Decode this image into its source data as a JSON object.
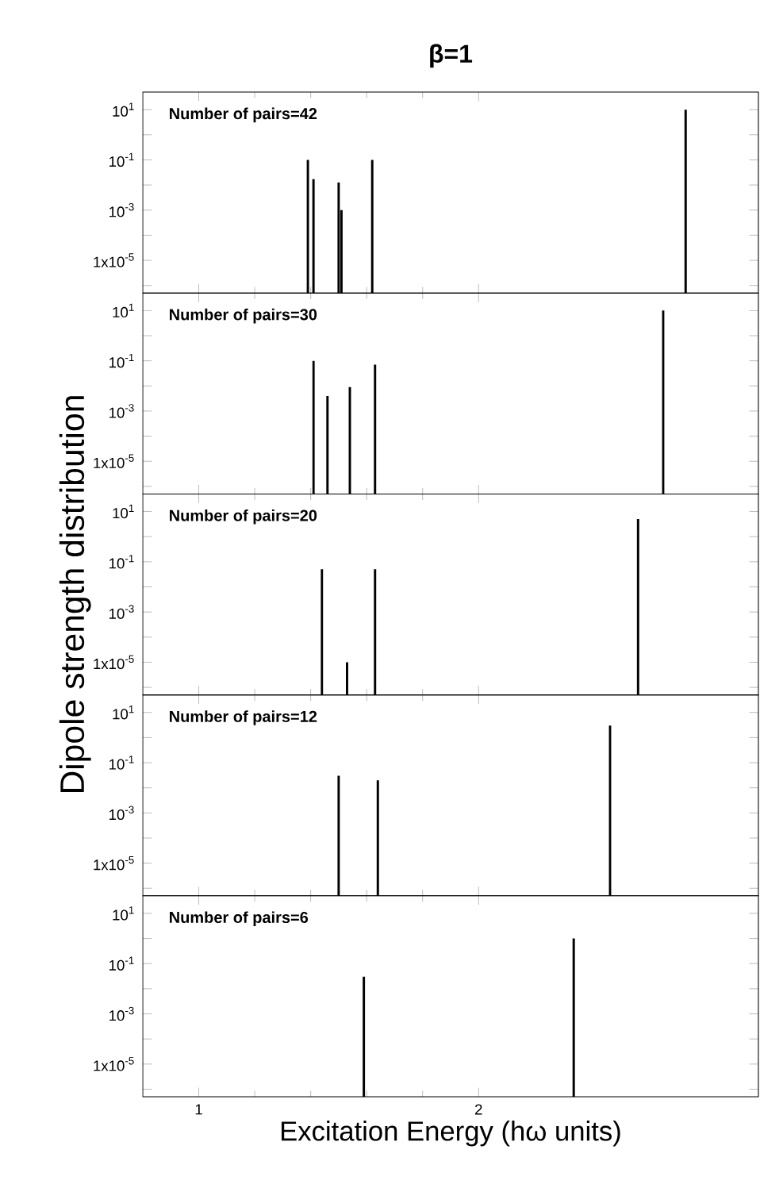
{
  "chart_data": [
    {
      "type": "bar",
      "title": "β=1",
      "annotations": [
        "Number of pairs=42"
      ],
      "log": "y",
      "xlim": [
        0.8,
        3.0
      ],
      "xticks": [
        1,
        2
      ],
      "ylim": [
        5e-07,
        50
      ],
      "tick_labels": "y",
      "yticks": [
        {
          "value": 10,
          "label": "10$^{1}$"
        },
        {
          "value": 1,
          "label": null
        },
        {
          "value": 0.1,
          "label": "10$^{-1}$"
        },
        {
          "value": 0.01,
          "label": null
        },
        {
          "value": 0.001,
          "label": "10$^{-3}$"
        },
        {
          "value": 0.0001,
          "label": null
        },
        {
          "value": 1e-05,
          "label": "1x10$^{-5}$"
        },
        {
          "value": 1e-06,
          "label": null
        }
      ],
      "series": [
        {
          "color": "#000000",
          "x": [
            1.39,
            1.41,
            1.5,
            1.51,
            1.62,
            2.74
          ],
          "values": [
            0.1,
            0.017,
            0.0125,
            0.001,
            0.1,
            10
          ]
        }
      ]
    },
    {
      "type": "bar",
      "annotations": [
        "Number of pairs=30"
      ],
      "log": "y",
      "xlim": [
        0.8,
        3.0
      ],
      "xticks": [
        1,
        2
      ],
      "ylim": [
        5e-07,
        50
      ],
      "tick_labels": "y",
      "yticks": [
        {
          "value": 10,
          "label": "10$^{1}$"
        },
        {
          "value": 1,
          "label": null
        },
        {
          "value": 0.1,
          "label": "10$^{-1}$"
        },
        {
          "value": 0.01,
          "label": null
        },
        {
          "value": 0.001,
          "label": "10$^{-3}$"
        },
        {
          "value": 0.0001,
          "label": null
        },
        {
          "value": 1e-05,
          "label": "1x10$^{-5}$"
        },
        {
          "value": 1e-06,
          "label": null
        }
      ],
      "series": [
        {
          "color": "#000000",
          "x": [
            1.41,
            1.46,
            1.54,
            1.63,
            2.66
          ],
          "values": [
            0.1,
            0.004,
            0.009,
            0.07,
            10
          ]
        }
      ]
    },
    {
      "type": "bar",
      "annotations": [
        "Number of pairs=20"
      ],
      "ylabel": "Dipole strength distribution",
      "log": "y",
      "xlim": [
        0.8,
        3.0
      ],
      "xticks": [
        1,
        2
      ],
      "ylim": [
        5e-07,
        50
      ],
      "tick_labels": "y",
      "yticks": [
        {
          "value": 10,
          "label": "10$^{1}$"
        },
        {
          "value": 1,
          "label": null
        },
        {
          "value": 0.1,
          "label": "10$^{-1}$"
        },
        {
          "value": 0.01,
          "label": null
        },
        {
          "value": 0.001,
          "label": "10$^{-3}$"
        },
        {
          "value": 0.0001,
          "label": null
        },
        {
          "value": 1e-05,
          "label": "1x10$^{-5}$"
        },
        {
          "value": 1e-06,
          "label": null
        }
      ],
      "series": [
        {
          "color": "#000000",
          "x": [
            1.44,
            1.53,
            1.63,
            2.57
          ],
          "values": [
            0.05,
            1e-05,
            0.05,
            5
          ]
        }
      ]
    },
    {
      "type": "bar",
      "annotations": [
        "Number of pairs=12"
      ],
      "log": "y",
      "xlim": [
        0.8,
        3.0
      ],
      "xticks": [
        1,
        2
      ],
      "ylim": [
        5e-07,
        50
      ],
      "tick_labels": "y",
      "yticks": [
        {
          "value": 10,
          "label": "10$^{1}$"
        },
        {
          "value": 1,
          "label": null
        },
        {
          "value": 0.1,
          "label": "10$^{-1}$"
        },
        {
          "value": 0.01,
          "label": null
        },
        {
          "value": 0.001,
          "label": "10$^{-3}$"
        },
        {
          "value": 0.0001,
          "label": null
        },
        {
          "value": 1e-05,
          "label": "1x10$^{-5}$"
        },
        {
          "value": 1e-06,
          "label": null
        }
      ],
      "series": [
        {
          "color": "#000000",
          "x": [
            1.5,
            1.64,
            2.47
          ],
          "values": [
            0.03,
            0.02,
            3
          ]
        }
      ]
    },
    {
      "type": "bar",
      "annotations": [
        "Number of pairs=6"
      ],
      "xlabel": "Excitation Energy (hω units)",
      "log": "y",
      "xlim": [
        0.8,
        3.0
      ],
      "xticks": [
        1,
        2
      ],
      "ylim": [
        5e-07,
        50
      ],
      "yticks": [
        {
          "value": 10,
          "label": "10$^{1}$"
        },
        {
          "value": 1,
          "label": null
        },
        {
          "value": 0.1,
          "label": "10$^{-1}$"
        },
        {
          "value": 0.01,
          "label": null
        },
        {
          "value": 0.001,
          "label": "10$^{-3}$"
        },
        {
          "value": 0.0001,
          "label": null
        },
        {
          "value": 1e-05,
          "label": "1x10$^{-5}$"
        },
        {
          "value": 1e-06,
          "label": null
        }
      ],
      "series": [
        {
          "color": "#000000",
          "x": [
            1.59,
            2.34
          ],
          "values": [
            0.03,
            1
          ]
        }
      ]
    }
  ]
}
